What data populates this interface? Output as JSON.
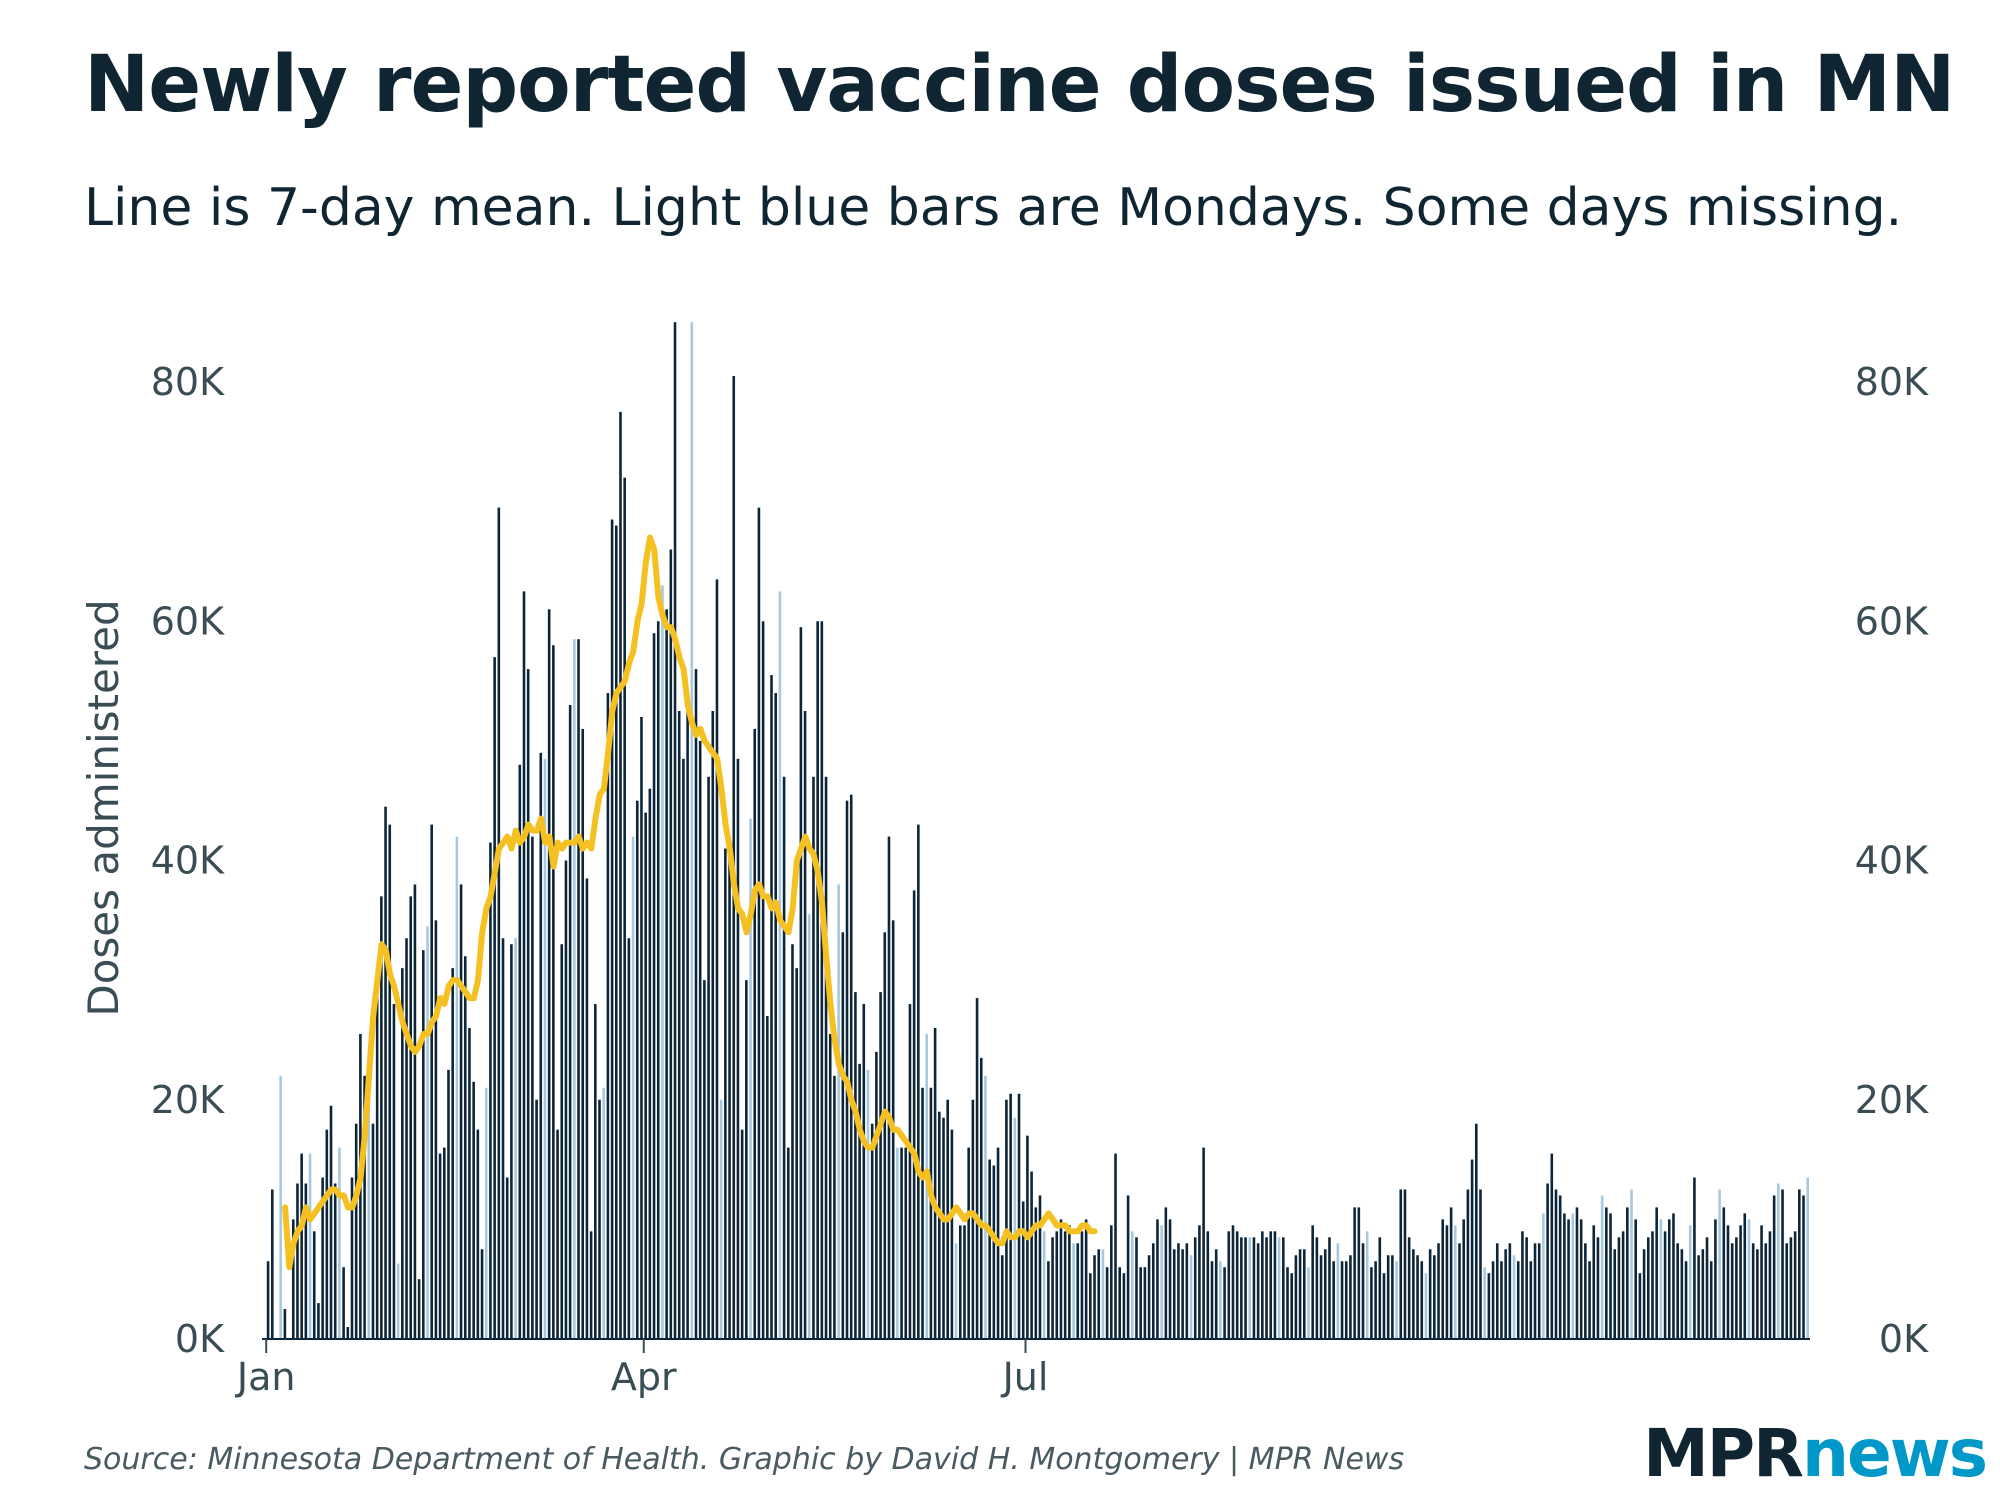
{
  "chart_data": {
    "type": "bar",
    "title": "Newly reported vaccine doses issued in MN",
    "subtitle": "Line is 7-day mean. Light blue bars are Mondays. Some days missing.",
    "ylabel": "Doses administered",
    "ylim": [
      0,
      90000
    ],
    "yticks": [
      0,
      20000,
      40000,
      60000,
      80000
    ],
    "ytick_labels": [
      "0K",
      "20K",
      "40K",
      "60K",
      "80K"
    ],
    "xtick_labels": [
      {
        "label": "Jan",
        "day": 1
      },
      {
        "label": "Apr",
        "day": 91
      },
      {
        "label": "Jul",
        "day": 182
      }
    ],
    "start_date": "2021-01-01",
    "first_monday_day": 4,
    "series": [
      {
        "name": "Newly reported doses",
        "values": [
          null,
          6500,
          12500,
          null,
          22000,
          2500,
          null,
          10000,
          13000,
          15500,
          13000,
          15500,
          9000,
          3000,
          13500,
          17500,
          19500,
          13000,
          16000,
          6000,
          1000,
          13500,
          18000,
          25500,
          22000,
          24000,
          18000,
          31000,
          37000,
          44500,
          43000,
          28000,
          6300,
          31000,
          33500,
          37000,
          38000,
          5000,
          32500,
          34500,
          43000,
          35000,
          15500,
          16000,
          22500,
          31000,
          42000,
          38000,
          32000,
          26000,
          21500,
          17500,
          7500,
          21000,
          41500,
          57000,
          69500,
          33500,
          13500,
          33000,
          33500,
          48000,
          62500,
          56000,
          42000,
          20000,
          49000,
          48500,
          61000,
          58000,
          17500,
          33000,
          40000,
          53000,
          58500,
          58500,
          51000,
          38500,
          9000,
          28000,
          20000,
          21000,
          54000,
          68500,
          68000,
          77500,
          72000,
          33500,
          42000,
          45000,
          52000,
          44000,
          46000,
          59000,
          60000,
          63000,
          61000,
          66000,
          85000,
          52500,
          48500,
          52500,
          85000,
          56000,
          50000,
          30000,
          47000,
          52500,
          63500,
          20000,
          41000,
          41000,
          80500,
          48500,
          17500,
          30000,
          43500,
          51000,
          69500,
          60000,
          27000,
          55500,
          54000,
          62500,
          47000,
          16000,
          33000,
          31000,
          59500,
          52500,
          35500,
          47000,
          60000,
          60000,
          47000,
          25500,
          22000,
          38000,
          34000,
          45000,
          45500,
          29000,
          23000,
          28000,
          22500,
          18000,
          24000,
          29000,
          34000,
          42000,
          35000,
          16000,
          16000,
          16000,
          28000,
          37500,
          43000,
          21000,
          25500,
          21000,
          26000,
          19000,
          18500,
          20000,
          17500,
          8000,
          9500,
          9500,
          16000,
          20000,
          28500,
          23500,
          22000,
          15000,
          14500,
          16000,
          7000,
          20000,
          20500,
          18500,
          20500,
          11500,
          17000,
          14000,
          11000,
          12000,
          9000,
          6500,
          8500,
          9000,
          10000,
          9000,
          9500,
          8000,
          8000,
          9000,
          10000,
          5500,
          7000,
          7500,
          7500,
          6000,
          9500,
          15500,
          6000,
          5500,
          12000,
          9000,
          8500,
          6000,
          6000,
          7000,
          8000,
          10000,
          9500,
          11000,
          10000,
          7500,
          8000,
          7500,
          8000,
          7000,
          8500,
          9500,
          16000,
          9000,
          6500,
          7500,
          6500,
          6000,
          9000,
          9500,
          9000,
          8500,
          8500,
          8500,
          8500,
          8000,
          9000,
          8500,
          9000,
          9000,
          8500,
          8500,
          6000,
          5500,
          7000,
          7500,
          7500,
          6000,
          9500,
          8500,
          7000,
          7500,
          8500,
          6500,
          8000,
          6500,
          6500,
          7000,
          11000,
          11000,
          8000,
          9000,
          6000,
          6500,
          8500,
          5500,
          7000,
          7000,
          6500,
          12500,
          12500,
          8500,
          7500,
          7000,
          6500,
          5500,
          7500,
          7000,
          8000,
          10000,
          9500,
          11000,
          9500,
          8000,
          10000,
          12500,
          15000,
          18000,
          12500,
          6000,
          5500,
          6500,
          8000,
          6500,
          7500,
          8000,
          7000,
          6500,
          9000,
          8500,
          6500,
          8000,
          8000,
          10500,
          13000,
          15500,
          12500,
          12000,
          10500,
          10000,
          10500,
          11000,
          10000,
          8000,
          6500,
          9500,
          8500,
          12000,
          11000,
          10500,
          7500,
          8500,
          9000,
          11000,
          12500,
          10000,
          5500,
          7500,
          8500,
          9000,
          11000,
          10000,
          9000,
          10000,
          10500,
          8000,
          7500,
          6500,
          9500,
          13500,
          7000,
          7500,
          8500,
          6500,
          10000,
          12500,
          11000,
          9500,
          8000,
          8500,
          9500,
          10500,
          10000,
          8000,
          7500,
          9500,
          8000,
          9000,
          12000,
          13000,
          12500,
          8000,
          8500,
          9000,
          12500,
          12000,
          13500
        ]
      }
    ],
    "mean_line": {
      "name": "7-day mean",
      "values": [
        null,
        null,
        null,
        null,
        null,
        11000,
        6000,
        8000,
        9000,
        9500,
        11000,
        10000,
        10500,
        11000,
        11500,
        12000,
        12500,
        12500,
        12000,
        12000,
        11000,
        11000,
        12000,
        13500,
        17000,
        22000,
        27000,
        30000,
        33000,
        32500,
        30500,
        29500,
        28000,
        26500,
        25500,
        24500,
        24000,
        24500,
        25500,
        25500,
        26500,
        27000,
        28500,
        28000,
        29500,
        30000,
        30000,
        29500,
        29000,
        28500,
        28500,
        30000,
        34000,
        36000,
        37000,
        39000,
        41000,
        41500,
        42000,
        41000,
        42500,
        41500,
        42000,
        43000,
        42500,
        42500,
        43500,
        41500,
        42000,
        39500,
        41500,
        41000,
        41500,
        41500,
        41500,
        42000,
        41000,
        41500,
        41000,
        43500,
        45500,
        46000,
        49000,
        52500,
        54000,
        54500,
        55000,
        56500,
        57500,
        60000,
        61500,
        65000,
        67000,
        66000,
        62000,
        60500,
        59500,
        59500,
        58500,
        57000,
        56000,
        53000,
        51500,
        50500,
        51000,
        50000,
        49500,
        49000,
        48500,
        46000,
        43000,
        41000,
        38000,
        36000,
        35500,
        34000,
        35500,
        37500,
        38000,
        37000,
        37000,
        36000,
        36500,
        35000,
        34500,
        34000,
        36000,
        40000,
        41000,
        42000,
        41000,
        40500,
        39000,
        36500,
        32000,
        28000,
        25000,
        23000,
        22000,
        21500,
        20000,
        19000,
        17500,
        16500,
        16000,
        16000,
        17000,
        18000,
        19000,
        18500,
        17500,
        17500,
        17000,
        16500,
        16000,
        15500,
        14000,
        13500,
        14000,
        12000,
        11000,
        10500,
        10000,
        10000,
        10500,
        11000,
        10500,
        10000,
        10500,
        10500,
        10000,
        9500,
        9500,
        9000,
        8500,
        8000,
        8000,
        9000,
        8500,
        8500,
        9000,
        9000,
        8500,
        9000,
        9500,
        9500,
        10000,
        10500,
        10000,
        9500,
        9500,
        9500,
        9000,
        9000,
        9000,
        9500,
        9500,
        9000,
        9000
      ]
    }
  },
  "footer": {
    "source": "Source: Minnesota Department of Health. Graphic by David H. Montgomery | MPR News",
    "logo_mpr": "MPR",
    "logo_news": "news"
  }
}
